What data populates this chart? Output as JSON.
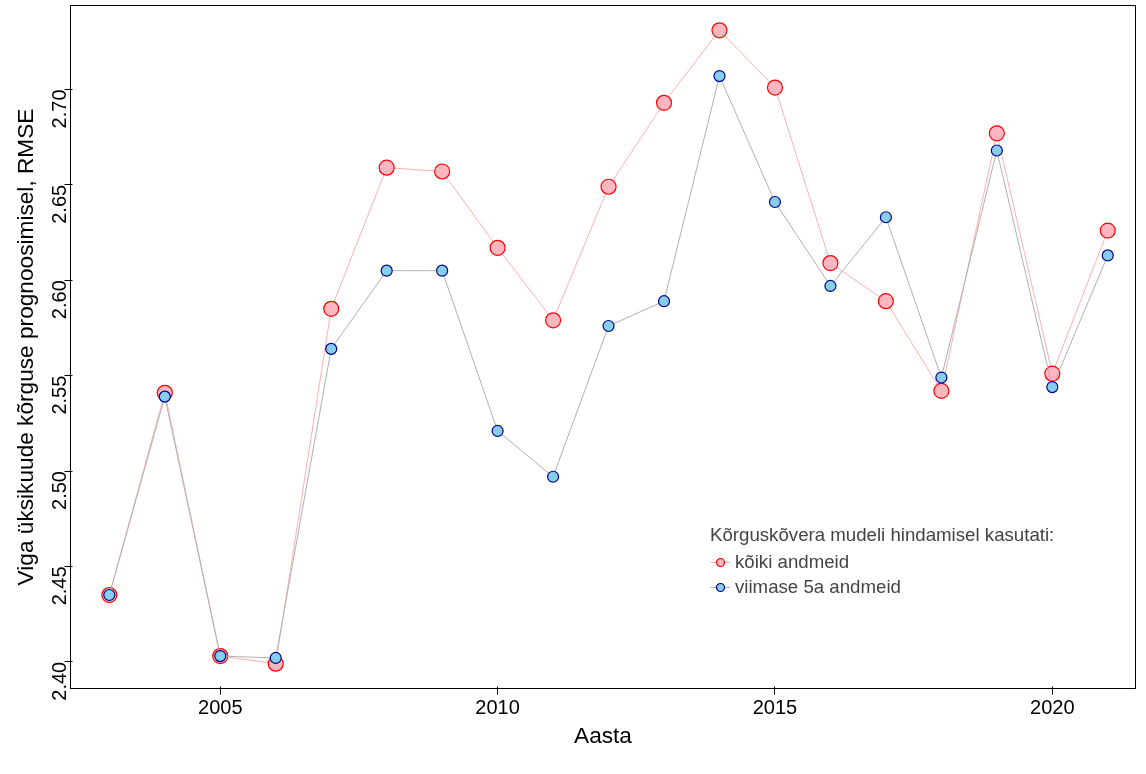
{
  "chart_data": {
    "type": "line",
    "xlabel": "Aasta",
    "ylabel": "Viga üksikuude kõrguse prognoosimisel, RMSE",
    "legend_title": "Kõrguskõvera mudeli hindamisel kasutati:",
    "x": [
      2003,
      2004,
      2005,
      2006,
      2007,
      2008,
      2009,
      2010,
      2011,
      2012,
      2013,
      2014,
      2015,
      2016,
      2017,
      2018,
      2019,
      2020,
      2021
    ],
    "series": [
      {
        "name": "kõiki andmeid",
        "color": "#ffb6c1",
        "values": [
          2.435,
          2.541,
          2.403,
          2.399,
          2.585,
          2.659,
          2.657,
          2.617,
          2.579,
          2.649,
          2.693,
          2.731,
          2.701,
          2.609,
          2.589,
          2.542,
          2.677,
          2.551,
          2.626
        ]
      },
      {
        "name": "viimase 5a andmeid",
        "color": "#87ceeb",
        "values": [
          2.435,
          2.539,
          2.403,
          2.402,
          2.564,
          2.605,
          2.605,
          2.521,
          2.497,
          2.576,
          2.589,
          2.707,
          2.641,
          2.597,
          2.633,
          2.549,
          2.668,
          2.544,
          2.613
        ]
      }
    ],
    "xlim": [
      2002.3,
      2021.5
    ],
    "ylim": [
      2.386,
      2.744
    ],
    "xticks": [
      2005,
      2010,
      2015,
      2020
    ],
    "yticks": [
      {
        "value": 2.4,
        "label": "2.40"
      },
      2.45,
      {
        "value": 2.5,
        "label": "2.50"
      },
      2.55,
      {
        "value": 2.6,
        "label": "2.60"
      },
      2.65,
      {
        "value": 2.7,
        "label": "2.70"
      }
    ],
    "marker": "circle",
    "legend": "bottom right",
    "grid": false
  }
}
